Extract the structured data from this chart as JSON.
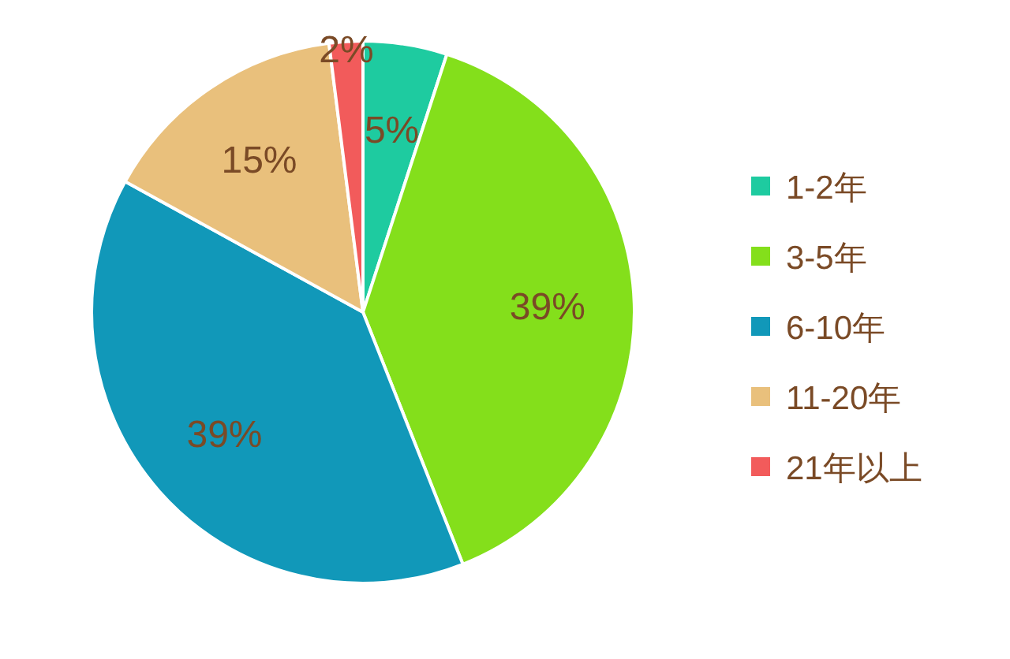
{
  "chart_data": {
    "type": "pie",
    "categories": [
      "1-2年",
      "3-5年",
      "6-10年",
      "11-20年",
      "21年以上"
    ],
    "values": [
      5,
      39,
      39,
      15,
      2
    ],
    "colors": [
      "#1ecba0",
      "#84df1b",
      "#1198b9",
      "#e9c07c",
      "#f25b5b"
    ],
    "value_labels": [
      "5%",
      "39%",
      "39%",
      "15%",
      "2%"
    ],
    "legend": "right"
  }
}
